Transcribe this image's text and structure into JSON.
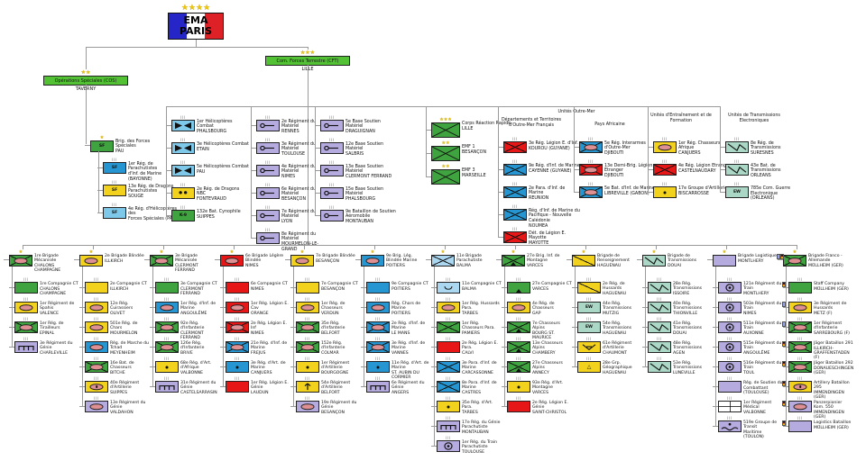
{
  "colors": {
    "green": "#3fa33f",
    "yellow": "#f2d21d",
    "red": "#e81717",
    "blue": "#2596d1",
    "lightblue": "#7ec8ea",
    "paleblue": "#abd7f0",
    "lavender": "#b5abdf",
    "teal": "#abd8c6",
    "white": "#ffffff",
    "hq_green": "#52c234",
    "oval_fill": "#dd8f92",
    "star": "#edc60a",
    "flag_blue": "#2525c8",
    "flag_red": "#de2126",
    "line": "#9a9a9a"
  },
  "root": {
    "title": "EMA",
    "subtitle": "PARIS",
    "stars": 4
  },
  "cos": {
    "label": "Opérations Spéciales (COS)",
    "location": "TAVERNY",
    "stars": 2
  },
  "cft": {
    "label": "Com. Forces Terrestre (CFT)",
    "location": "LILLE",
    "stars": 3
  },
  "section_headers": {
    "outre_mer": "Unités Outre-Mer",
    "dom_tom": "Départements et Territoires d'Outre-Mer Français",
    "africa": "Pays Africaine",
    "training": "Unités d'Entraînement et de Formation",
    "elec": "Unités de Transmissions Electroniques"
  },
  "middle_columns": [
    {
      "id": "forces-speciales",
      "units": [
        {
          "n": "Brig. des Forces Spéciales",
          "l": "PAU",
          "c": "green",
          "g": "SF",
          "stars": 1
        },
        {
          "n": "1er Rég. de Parachutistes",
          "l": "d'Inf. de Marine (BAYONNE)",
          "c": "blue",
          "g": "SF",
          "ind": 1
        },
        {
          "n": "13e Rég. de Dragons Parachutistes",
          "l": "SOUGE",
          "c": "yellow",
          "g": "SF",
          "ind": 1
        },
        {
          "n": "4e Rég. d'Hélicoptères des",
          "l": "Forces Spéciales (PAU)",
          "c": "lightblue",
          "g": "SF",
          "ind": 1
        }
      ]
    },
    {
      "id": "aviation",
      "units": [
        {
          "n": "1er Hélicoptères Combat",
          "l": "PHALSBOURG",
          "c": "lightblue",
          "g": "bowtie"
        },
        {
          "n": "3e Hélicoptères Combat",
          "l": "ETAIN",
          "c": "lightblue",
          "g": "bowtie"
        },
        {
          "n": "5e Hélicoptères Combat",
          "l": "PAU",
          "c": "lightblue",
          "g": "bowtie"
        },
        {
          "n": "2e Rég. de Dragons NBC",
          "l": "FONTEVRAUD",
          "c": "yellow",
          "g": "nbc"
        },
        {
          "n": "132e Bat. Cynophile",
          "l": "SUIPPES",
          "c": "green",
          "g": "K-9"
        }
      ]
    },
    {
      "id": "materiel",
      "units": [
        {
          "n": "2e Régiment du Matériel",
          "l": "RENNES",
          "c": "lavender",
          "g": "maint"
        },
        {
          "n": "3e Régiment du Matériel",
          "l": "TOULOUSE",
          "c": "lavender",
          "g": "maint"
        },
        {
          "n": "4e Régiment du Matériel",
          "l": "NIMES",
          "c": "lavender",
          "g": "maint"
        },
        {
          "n": "6e Régiment du Matériel",
          "l": "BESANÇON",
          "c": "lavender",
          "g": "maint"
        },
        {
          "n": "7e Régiment du Matériel",
          "l": "LYON",
          "c": "lavender",
          "g": "maint"
        },
        {
          "n": "8e Régiment du Matériel",
          "l": "MOURMELON-LE-GRAND",
          "c": "lavender",
          "g": "maint"
        }
      ]
    },
    {
      "id": "bases-soutien",
      "units": [
        {
          "n": "5e Base Soutien Matériel",
          "l": "DRAGUIGNAN",
          "c": "lavender",
          "g": "maint"
        },
        {
          "n": "12e Base Soutien Matériel",
          "l": "SALBRIS",
          "c": "lavender",
          "g": "maint"
        },
        {
          "n": "13e Base Soutien Matériel",
          "l": "CLERMONT FERRAND",
          "c": "lavender",
          "g": "maint"
        },
        {
          "n": "15e Base Soutien Matériel",
          "l": "PHALSBOURG",
          "c": "lavender",
          "g": "maint"
        },
        {
          "n": "9e Bataillon de Soutien Aéromobile",
          "l": "MONTAUBAN",
          "c": "lavender",
          "g": "maint"
        }
      ]
    },
    {
      "id": "etats-majors",
      "units": [
        {
          "n": "Corps Réaction Rapide",
          "l": "LILLE",
          "c": "green",
          "g": "x",
          "stars": 3
        },
        {
          "n": "EMF 1",
          "l": "BESANÇON",
          "c": "green",
          "g": "x",
          "stars": 2
        },
        {
          "n": "EMF 3",
          "l": "MARSEILLE",
          "c": "green",
          "g": "x",
          "stars": 2
        }
      ]
    },
    {
      "id": "dom-tom",
      "units": [
        {
          "n": "3e Rég. Légion E. d'Inf.",
          "l": "KOUROU (GUYANE)",
          "c": "red",
          "g": "x"
        },
        {
          "n": "9e Rég. d'Inf. de Marine",
          "l": "CAYENNE (GUYANE)",
          "c": "blue",
          "g": "x"
        },
        {
          "n": "2e Para. d'Inf. de Marine",
          "l": "REUNION",
          "c": "blue",
          "g": "x"
        },
        {
          "n": "Rég. d'Inf. de Marine du Pacifique - Nouvelle Calédonie",
          "l": "NOUMEA",
          "c": "blue",
          "g": "x"
        },
        {
          "n": "Dét. de Légion E. Mayotte",
          "l": "MAYOTTE",
          "c": "red",
          "g": "x"
        }
      ]
    },
    {
      "id": "pays-africaine",
      "units": [
        {
          "n": "5e Rég. Interarmes d'Outre-Mer",
          "l": "DJIBOUTI",
          "c": "blue",
          "g": "ovalx"
        },
        {
          "n": "13e Demi-Brig. Légion Etranger",
          "l": "DJIBOUTI",
          "c": "red",
          "g": "ovalx"
        },
        {
          "n": "5e Bat. d'Inf. de Marine",
          "l": "LIBREVILLE (GABON)",
          "c": "blue",
          "g": "ovalx"
        }
      ]
    },
    {
      "id": "entrainement",
      "units": [
        {
          "n": "1er Rég. Chasseurs Afrique",
          "l": "CANJUERS",
          "c": "yellow",
          "g": "oval"
        },
        {
          "n": "4e Rég. Légion Etranger",
          "l": "CASTELNAUDARY",
          "c": "red",
          "g": "x"
        },
        {
          "n": "17e Groupe d'Artillerie",
          "l": "BISCARROSSE",
          "c": "yellow",
          "g": "dot"
        }
      ]
    },
    {
      "id": "transmissions-electroniques",
      "units": [
        {
          "n": "8e Rég. de Transmissions",
          "l": "SURESNES",
          "c": "teal",
          "g": "zig"
        },
        {
          "n": "43e Bat. de Transmissions",
          "l": "ORLEANS",
          "c": "teal",
          "g": "zig"
        },
        {
          "n": "785e Com. Guerre",
          "l": "Electronique (ORLEANS)",
          "c": "teal",
          "g": "EW"
        }
      ]
    }
  ],
  "brigades": [
    {
      "hdr": {
        "n": "1re Brigade Mécanisée",
        "l": "CHALONS CHAMPAGNE",
        "c": "green",
        "g": "ovalx"
      },
      "units": [
        {
          "n": "1re Compagnie CT",
          "l": "CHALONS CHAMPAGNE",
          "c": "green",
          "g": "plain"
        },
        {
          "n": "1er Régiment de Spahis",
          "l": "VALENCE",
          "c": "yellow",
          "g": "oval"
        },
        {
          "n": "1er Rég. de Tirailleurs",
          "l": "EPINAL",
          "c": "green",
          "g": "ovalx"
        },
        {
          "n": "3e Régiment du Génie",
          "l": "CHARLEVILLE",
          "c": "lavender",
          "g": "bridge"
        }
      ]
    },
    {
      "hdr": {
        "n": "2e Brigade Blindée",
        "l": "ILLKIRCH",
        "c": "yellow",
        "g": "oval"
      },
      "units": [
        {
          "n": "2e Compagnie CT",
          "l": "ILLKIRCH",
          "c": "yellow",
          "g": "plain"
        },
        {
          "n": "12e Rég. Cuirassiers",
          "l": "OLIVET",
          "c": "yellow",
          "g": "oval"
        },
        {
          "n": "501e Rég. de Chars",
          "l": "MOURMELON",
          "c": "yellow",
          "g": "oval"
        },
        {
          "n": "Rég. de Marche du Tchad",
          "l": "MEYENHEIM",
          "c": "blue",
          "g": "oval"
        },
        {
          "n": "16e Bat. de Chasseurs",
          "l": "BITCHE",
          "c": "green",
          "g": "ovalx"
        },
        {
          "n": "40e Régiment d'Artillerie",
          "l": "SUIPPES",
          "c": "yellow",
          "g": "dotoval"
        },
        {
          "n": "13e Régiment du Génie",
          "l": "VALDAHON",
          "c": "lavender",
          "g": "oval"
        }
      ]
    },
    {
      "hdr": {
        "n": "3e Brigade Mécanisée",
        "l": "CLERMONT FERRAND",
        "c": "green",
        "g": "ovalx"
      },
      "units": [
        {
          "n": "3e Compagnie CT",
          "l": "CLERMONT FERRAND",
          "c": "green",
          "g": "plain"
        },
        {
          "n": "1er Rég. d'Inf. de Marine",
          "l": "ANGOULÊME",
          "c": "blue",
          "g": "oval"
        },
        {
          "n": "92e Rég. d'Infanterie",
          "l": "CLERMONT FERRAND",
          "c": "green",
          "g": "ovalx"
        },
        {
          "n": "126e Rég. d'Infanterie",
          "l": "BRIVE",
          "c": "green",
          "g": "ovalx"
        },
        {
          "n": "68e Rég. d'Art. d'Afrique",
          "l": "VALBONNE",
          "c": "yellow",
          "g": "dot"
        },
        {
          "n": "31e Régiment du Génie",
          "l": "CASTELSARRASIN",
          "c": "lavender",
          "g": "bridge"
        }
      ]
    },
    {
      "hdr": {
        "n": "6e Brigade Légère Blindée",
        "l": "NIMES",
        "c": "red",
        "g": "oval"
      },
      "units": [
        {
          "n": "6e Compagnie CT",
          "l": "NIMES",
          "c": "red",
          "g": "plain"
        },
        {
          "n": "1er Rég. Légion E. Cav",
          "l": "ORANGE",
          "c": "red",
          "g": "oval"
        },
        {
          "n": "2e Rég. Légion E. Inf",
          "l": "NIMES",
          "c": "red",
          "g": "ovalx"
        },
        {
          "n": "21e Rég. d'Inf. de Marine",
          "l": "FREJUS",
          "c": "blue",
          "g": "ovalx"
        },
        {
          "n": "3e Rég. d'Art. de Marine",
          "l": "CANJUERS",
          "c": "blue",
          "g": "dot"
        },
        {
          "n": "1er Rég. Légion E. Génie",
          "l": "LAUDUN",
          "c": "red",
          "g": "plain"
        }
      ]
    },
    {
      "hdr": {
        "n": "7e Brigade Blindée",
        "l": "BESANÇON",
        "c": "yellow",
        "g": "oval"
      },
      "units": [
        {
          "n": "7e Compagnie CT",
          "l": "BESANÇON",
          "c": "yellow",
          "g": "plain"
        },
        {
          "n": "1er Rég. de Chasseurs",
          "l": "VERDUN",
          "c": "yellow",
          "g": "oval"
        },
        {
          "n": "35e Rég. d'Infanterie",
          "l": "BELFORT",
          "c": "green",
          "g": "ovalx"
        },
        {
          "n": "152e Rég. d'Infanterie",
          "l": "COLMAR",
          "c": "green",
          "g": "ovalx"
        },
        {
          "n": "1er Régiment d'Artillerie",
          "l": "BOURGOGNE",
          "c": "yellow",
          "g": "dot"
        },
        {
          "n": "54e Régiment d'Artillerie",
          "l": "BELFORT",
          "c": "yellow",
          "g": "msl"
        },
        {
          "n": "19e Régiment du Génie",
          "l": "BESANÇON",
          "c": "lavender",
          "g": "oval"
        }
      ]
    },
    {
      "hdr": {
        "n": "9e Brig. Lég. Blindée Marine",
        "l": "POITIERS",
        "c": "blue",
        "g": "oval"
      },
      "units": [
        {
          "n": "9e Compagnie CT",
          "l": "POITIERS",
          "c": "blue",
          "g": "plain"
        },
        {
          "n": "Rég. Chars de Marine",
          "l": "POITIERS",
          "c": "blue",
          "g": "oval"
        },
        {
          "n": "2e Rég. d'Inf. de Marine",
          "l": "LE MANS",
          "c": "blue",
          "g": "ovalx"
        },
        {
          "n": "3e Rég. d'Inf. de Marine",
          "l": "VANNES",
          "c": "blue",
          "g": "ovalx"
        },
        {
          "n": "11e Rég. d'Art. de Marine",
          "l": "ST. AUBIN DU CORMIER",
          "c": "blue",
          "g": "dot"
        },
        {
          "n": "6e Régiment du Génie",
          "l": "ANGERS",
          "c": "lavender",
          "g": "bridge"
        }
      ]
    },
    {
      "hdr": {
        "n": "11e Brigade Parachutiste",
        "l": "BALMA",
        "c": "paleblue",
        "g": "x"
      },
      "units": [
        {
          "n": "11e Compagnie CT",
          "l": "BALMA",
          "c": "paleblue",
          "g": "para"
        },
        {
          "n": "1er Rég. Hussards Para.",
          "l": "TARBES",
          "c": "yellow",
          "g": "oval"
        },
        {
          "n": "1er Rég. Chasseurs Para.",
          "l": "PAMIERS",
          "c": "green",
          "g": "x"
        },
        {
          "n": "2e Rég. Légion E. Para.",
          "l": "CALVI",
          "c": "red",
          "g": "plain"
        },
        {
          "n": "3e Para. d'Inf. de Marine",
          "l": "CARCASSONNE",
          "c": "blue",
          "g": "x"
        },
        {
          "n": "8e Para. d'Inf. de Marine",
          "l": "CASTRES",
          "c": "blue",
          "g": "x"
        },
        {
          "n": "35e Rég. d'Art. Para.",
          "l": "TARBES",
          "c": "yellow",
          "g": "dot"
        },
        {
          "n": "17e Rég. du Génie Parachutiste",
          "l": "MONTAUBAN",
          "c": "lavender",
          "g": "bridge"
        },
        {
          "n": "1er Rég. du Train Parachutiste",
          "l": "TOULOUSE",
          "c": "lavender",
          "g": "train"
        }
      ]
    },
    {
      "hdr": {
        "n": "27e Brig. Inf. de Montagne",
        "l": "VARCES",
        "c": "green",
        "g": "xtri"
      },
      "units": [
        {
          "n": "27e Compagnie CT",
          "l": "VARCES",
          "c": "green",
          "g": "tri"
        },
        {
          "n": "4e Rég. de Chasseurs",
          "l": "GAP",
          "c": "yellow",
          "g": "oval"
        },
        {
          "n": "7e Chasseurs Alpins",
          "l": "BOURG ST. MAURICE",
          "c": "green",
          "g": "xtri"
        },
        {
          "n": "13e Chasseurs Alpins",
          "l": "CHAMBERY",
          "c": "green",
          "g": "xtri"
        },
        {
          "n": "27e Chasseurs Alpins",
          "l": "ANNECY",
          "c": "green",
          "g": "xtri"
        },
        {
          "n": "93e Rég. d'Art. Montagne",
          "l": "VARCES",
          "c": "yellow",
          "g": "dot"
        },
        {
          "n": "2e Rég. Légion E. Génie",
          "l": "SAINT-CHRISTOL",
          "c": "red",
          "g": "plain"
        }
      ]
    },
    {
      "hdr": {
        "n": "Brigade de Renseignement",
        "l": "HAGUENAU",
        "c": "yellow",
        "g": "diag"
      },
      "units": [
        {
          "n": "2e Rég. de Hussards",
          "l": "HAGUENAU",
          "c": "yellow",
          "g": "diag"
        },
        {
          "n": "44e Rég. Transmissions",
          "l": "MUTZIG",
          "c": "teal",
          "g": "EW"
        },
        {
          "n": "54e Rég. Transmissions",
          "l": "HAGUENAU",
          "c": "teal",
          "g": "EW"
        },
        {
          "n": "61e Régiment d'Artillerie",
          "l": "CHAUMONT",
          "c": "yellow",
          "g": "chev"
        },
        {
          "n": "28e Grp. Géographique",
          "l": "HAGUENAU",
          "c": "yellow",
          "g": "geo"
        }
      ]
    },
    {
      "hdr": {
        "n": "Brigade de Transmissions",
        "l": "DOUAI",
        "c": "teal",
        "g": "zig"
      },
      "units": [
        {
          "n": "28e Rég. Transmissions",
          "l": "ISSOIRE",
          "c": "teal",
          "g": "zig"
        },
        {
          "n": "40e Rég. Transmissions",
          "l": "THIONVILLE",
          "c": "teal",
          "g": "zig"
        },
        {
          "n": "41e Rég. Transmissions",
          "l": "DOUAI",
          "c": "teal",
          "g": "zig"
        },
        {
          "n": "48e Rég. Transmissions",
          "l": "AGEN",
          "c": "teal",
          "g": "zig"
        },
        {
          "n": "53e Rég. Transmissions",
          "l": "LUNEVILLE",
          "c": "teal",
          "g": "zig"
        }
      ]
    },
    {
      "hdr": {
        "n": "Brigade Logistique",
        "l": "MONTLHERY",
        "c": "lavender",
        "g": "plain"
      },
      "units": [
        {
          "n": "121e Régiment du Train",
          "l": "MONTLHERY",
          "c": "lavender",
          "g": "train"
        },
        {
          "n": "503e Régiment du Train",
          "l": "NIMES",
          "c": "lavender",
          "g": "train"
        },
        {
          "n": "511e Régiment du Train",
          "l": "AUXONNE",
          "c": "lavender",
          "g": "train"
        },
        {
          "n": "515e Régiment du Train",
          "l": "ANGOULÊME",
          "c": "lavender",
          "g": "train"
        },
        {
          "n": "516e Régiment du Train",
          "l": "TOUL",
          "c": "lavender",
          "g": "train"
        },
        {
          "n": "Rég. de Soutien du",
          "l": "Combattant (TOULOUSE)",
          "c": "lavender",
          "g": "plain"
        },
        {
          "n": "1er Régiment Médical",
          "l": "VALBONNE",
          "c": "white",
          "g": "med"
        },
        {
          "n": "519e Groupe de Transit",
          "l": "Maritime (TOULON)",
          "c": "lavender",
          "g": "wave"
        }
      ]
    },
    {
      "hdr": {
        "n": "Brigade Franco - Allemande",
        "l": "MÜLLHEIM (GER)",
        "c": "green",
        "g": "ovalx",
        "f": "frde"
      },
      "units": [
        {
          "n": "Staff Company",
          "l": "MÜLLHEIM (GER)",
          "c": "green",
          "g": "plain",
          "f": "de"
        },
        {
          "n": "3e Régiment de Hussards",
          "l": "METZ (F)",
          "c": "yellow",
          "g": "oval",
          "f": "fr"
        },
        {
          "n": "1er Régiment d'Infanterie",
          "l": "SARREBOURG (F)",
          "c": "green",
          "g": "ovalx",
          "f": "fr"
        },
        {
          "n": "Jäger Bataillon 291",
          "l": "ILLKIRCH-GRAFFENSTADEN (F)",
          "c": "green",
          "g": "ovalx",
          "f": "de"
        },
        {
          "n": "Jäger Bataillon 292",
          "l": "DONAUESCHINGEN (GER)",
          "c": "green",
          "g": "ovalx",
          "f": "de"
        },
        {
          "n": "Artillery Bataillon 295",
          "l": "IMMENDINGEN (GER)",
          "c": "yellow",
          "g": "dotoval",
          "f": "de"
        },
        {
          "n": "Panzerpionier Kom. 550",
          "l": "IMMENDINGEN (GER)",
          "c": "lavender",
          "g": "oval",
          "f": "de"
        },
        {
          "n": "Logistics Bataillon",
          "l": "MÜLLHEIM (GER)",
          "c": "lavender",
          "g": "plain",
          "f": "de"
        }
      ]
    }
  ]
}
